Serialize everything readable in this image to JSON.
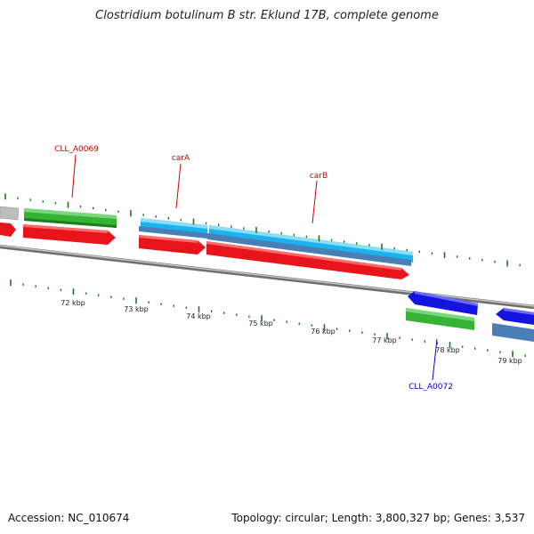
{
  "title": "Clostridium botulinum B str. Eklund 17B, complete genome",
  "footer": {
    "accession": "Accession: NC_010674",
    "summary": "Topology: circular; Length: 3,800,327 bp; Genes: 3,537"
  },
  "colors": {
    "backbone": "#8a8a8a",
    "tick": "#1a7a1a",
    "label_forward": "#cc0000",
    "label_reverse": "#0000cc",
    "gene_red": "#e8141c",
    "gene_green": "#35b335",
    "gene_cyan": "#19b4ee",
    "gene_steel": "#4a7fb5",
    "gene_blue": "#1414e0",
    "gene_grey": "#bdbdbd"
  },
  "axis": {
    "unit": "kbp",
    "tick_labels": [
      "72 kbp",
      "73 kbp",
      "74 kbp",
      "75 kbp",
      "76 kbp",
      "77 kbp",
      "78 kbp",
      "79 kbp"
    ]
  },
  "gene_labels": [
    {
      "name": "CLL_A0069",
      "strand": "forward"
    },
    {
      "name": "carA",
      "strand": "forward"
    },
    {
      "name": "carB",
      "strand": "forward"
    },
    {
      "name": "CLL_A0072",
      "strand": "reverse"
    }
  ]
}
